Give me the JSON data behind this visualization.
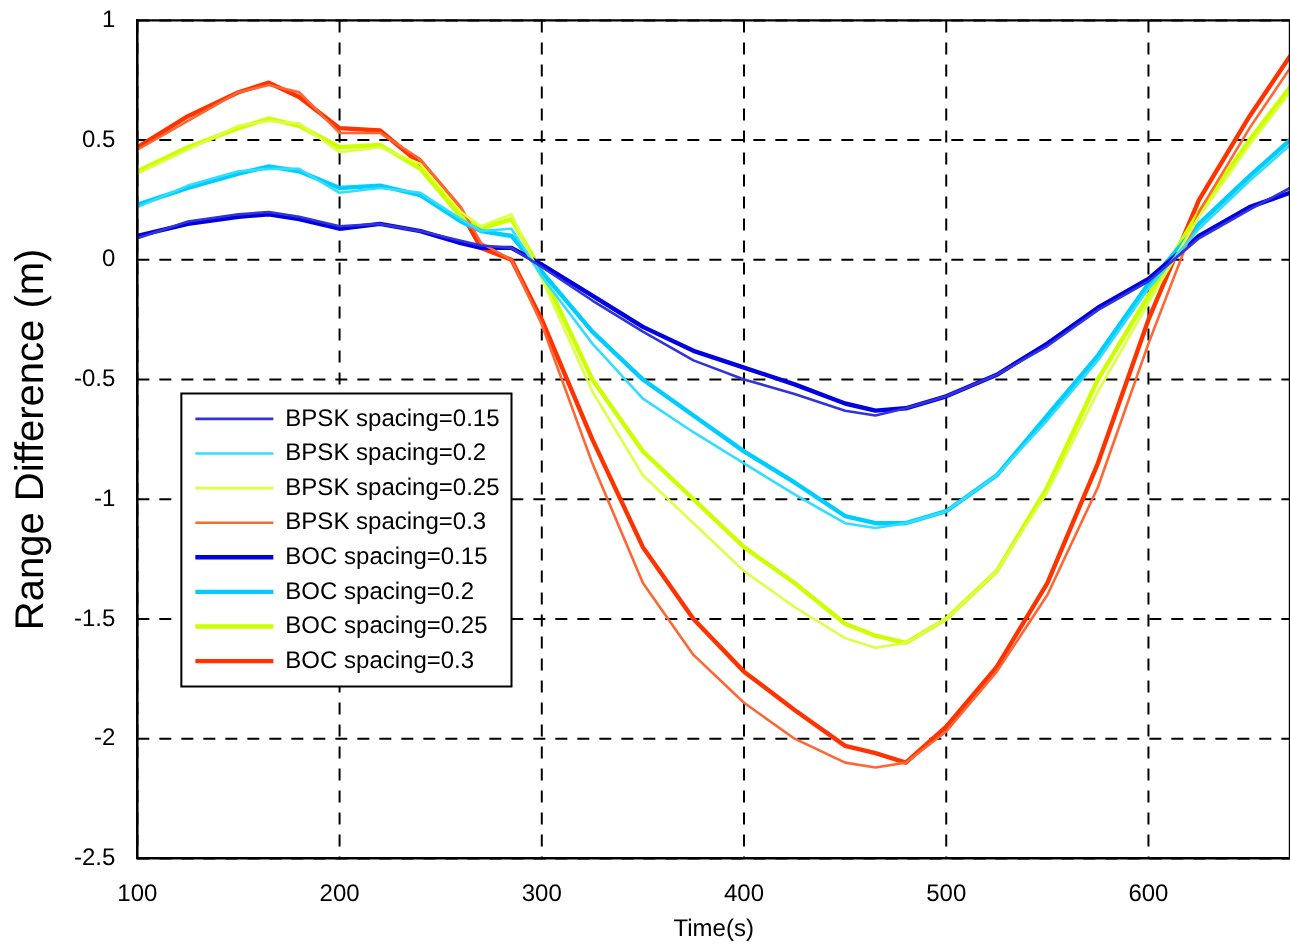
{
  "chart_data": {
    "type": "line",
    "xlabel": "Time(s)",
    "ylabel": "Range Difference (m)",
    "x": [
      100,
      125,
      150,
      165,
      180,
      200,
      220,
      240,
      260,
      270,
      285,
      300,
      325,
      350,
      375,
      400,
      425,
      450,
      465,
      480,
      500,
      525,
      550,
      575,
      600,
      625,
      650,
      670
    ],
    "series": [
      {
        "name": "BPSK spacing=0.15",
        "color": "#3333dd",
        "values": [
          0.09,
          0.16,
          0.19,
          0.2,
          0.18,
          0.14,
          0.15,
          0.12,
          0.08,
          0.06,
          0.05,
          -0.03,
          -0.17,
          -0.3,
          -0.42,
          -0.5,
          -0.56,
          -0.63,
          -0.65,
          -0.62,
          -0.57,
          -0.48,
          -0.36,
          -0.21,
          -0.09,
          0.09,
          0.21,
          0.3
        ]
      },
      {
        "name": "BPSK spacing=0.2",
        "color": "#33ddff",
        "values": [
          0.22,
          0.31,
          0.37,
          0.38,
          0.38,
          0.28,
          0.3,
          0.28,
          0.17,
          0.12,
          0.13,
          -0.07,
          -0.35,
          -0.58,
          -0.72,
          -0.85,
          -0.98,
          -1.1,
          -1.12,
          -1.1,
          -1.05,
          -0.9,
          -0.67,
          -0.42,
          -0.12,
          0.13,
          0.33,
          0.48
        ]
      },
      {
        "name": "BPSK spacing=0.25",
        "color": "#ddff44",
        "values": [
          0.36,
          0.46,
          0.56,
          0.58,
          0.57,
          0.45,
          0.47,
          0.4,
          0.2,
          0.14,
          0.19,
          -0.08,
          -0.55,
          -0.9,
          -1.1,
          -1.3,
          -1.45,
          -1.58,
          -1.62,
          -1.6,
          -1.5,
          -1.3,
          -0.97,
          -0.55,
          -0.18,
          0.18,
          0.48,
          0.7
        ]
      },
      {
        "name": "BPSK spacing=0.3",
        "color": "#ff6633",
        "values": [
          0.46,
          0.58,
          0.7,
          0.73,
          0.7,
          0.53,
          0.53,
          0.42,
          0.22,
          0.07,
          0,
          -0.27,
          -0.85,
          -1.35,
          -1.65,
          -1.85,
          -2.0,
          -2.1,
          -2.12,
          -2.1,
          -1.97,
          -1.72,
          -1.4,
          -0.95,
          -0.35,
          0.2,
          0.55,
          0.8
        ]
      },
      {
        "name": "BOC spacing=0.15",
        "color": "#0000e0",
        "values": [
          0.1,
          0.15,
          0.18,
          0.19,
          0.17,
          0.13,
          0.15,
          0.12,
          0.07,
          0.05,
          0.05,
          -0.02,
          -0.15,
          -0.28,
          -0.38,
          -0.45,
          -0.52,
          -0.6,
          -0.63,
          -0.62,
          -0.57,
          -0.48,
          -0.35,
          -0.2,
          -0.08,
          0.1,
          0.22,
          0.28
        ]
      },
      {
        "name": "BOC spacing=0.2",
        "color": "#00ccff",
        "values": [
          0.23,
          0.3,
          0.36,
          0.39,
          0.37,
          0.3,
          0.31,
          0.27,
          0.16,
          0.12,
          0.1,
          -0.05,
          -0.3,
          -0.5,
          -0.65,
          -0.8,
          -0.93,
          -1.07,
          -1.1,
          -1.1,
          -1.05,
          -0.9,
          -0.65,
          -0.4,
          -0.1,
          0.15,
          0.35,
          0.5
        ]
      },
      {
        "name": "BOC spacing=0.25",
        "color": "#ccff00",
        "values": [
          0.37,
          0.47,
          0.55,
          0.59,
          0.56,
          0.47,
          0.48,
          0.38,
          0.18,
          0.13,
          0.17,
          -0.05,
          -0.5,
          -0.8,
          -1.0,
          -1.2,
          -1.35,
          -1.52,
          -1.57,
          -1.6,
          -1.5,
          -1.3,
          -0.95,
          -0.5,
          -0.15,
          0.2,
          0.5,
          0.72
        ]
      },
      {
        "name": "BOC spacing=0.3",
        "color": "#ff3300",
        "values": [
          0.47,
          0.6,
          0.7,
          0.74,
          0.68,
          0.55,
          0.54,
          0.4,
          0.2,
          0.05,
          0,
          -0.25,
          -0.75,
          -1.2,
          -1.5,
          -1.72,
          -1.88,
          -2.03,
          -2.06,
          -2.1,
          -1.95,
          -1.7,
          -1.35,
          -0.85,
          -0.25,
          0.25,
          0.6,
          0.85
        ]
      }
    ],
    "xlim": [
      100,
      670
    ],
    "xticks": [
      100,
      200,
      300,
      400,
      500,
      600
    ],
    "ylim": [
      -2.5,
      1
    ],
    "yticks": [
      -2.5,
      -2,
      -1.5,
      -1,
      -0.5,
      0,
      0.5,
      1
    ],
    "grid": true,
    "legend": "bottom left",
    "marker": "none",
    "line_style": "solid"
  }
}
